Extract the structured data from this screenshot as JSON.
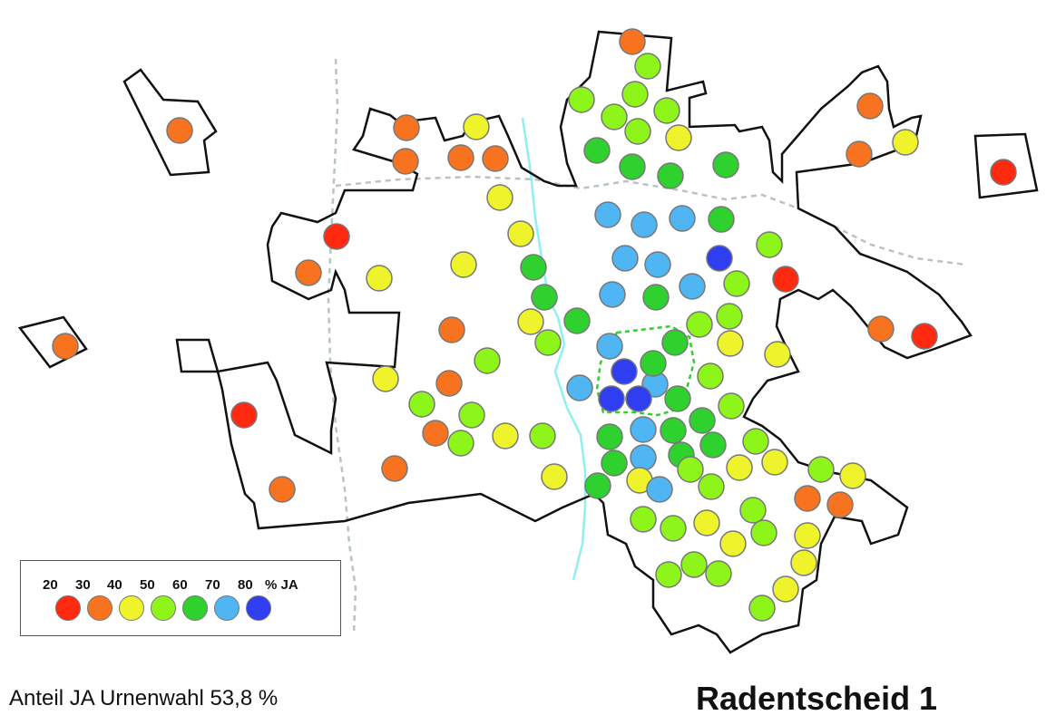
{
  "title": "Radentscheid 1",
  "caption": "Anteil JA Urnenwahl 53,8 %",
  "legend": {
    "labels": [
      "20",
      "30",
      "40",
      "50",
      "60",
      "70",
      "80",
      "% JA"
    ],
    "swatches": [
      {
        "name": "20",
        "color": "#ff2a0f"
      },
      {
        "name": "30",
        "color": "#f7731f"
      },
      {
        "name": "40",
        "color": "#eef32c"
      },
      {
        "name": "50",
        "color": "#8ef51b"
      },
      {
        "name": "60",
        "color": "#2fd12f"
      },
      {
        "name": "70",
        "color": "#4fb5f3"
      },
      {
        "name": "80",
        "color": "#2f3ef0"
      }
    ]
  },
  "colors": {
    "red": "#ff2a0f",
    "orange": "#f7731f",
    "yellow": "#eef32c",
    "lime": "#8ef51b",
    "green": "#2fd12f",
    "lightblue": "#4fb5f3",
    "blue": "#2f3ef0",
    "outline": "#111111",
    "river": "#8ff0f0",
    "border_dashed": "#b7c3c9",
    "center_dashed": "#2fd12f"
  }
}
